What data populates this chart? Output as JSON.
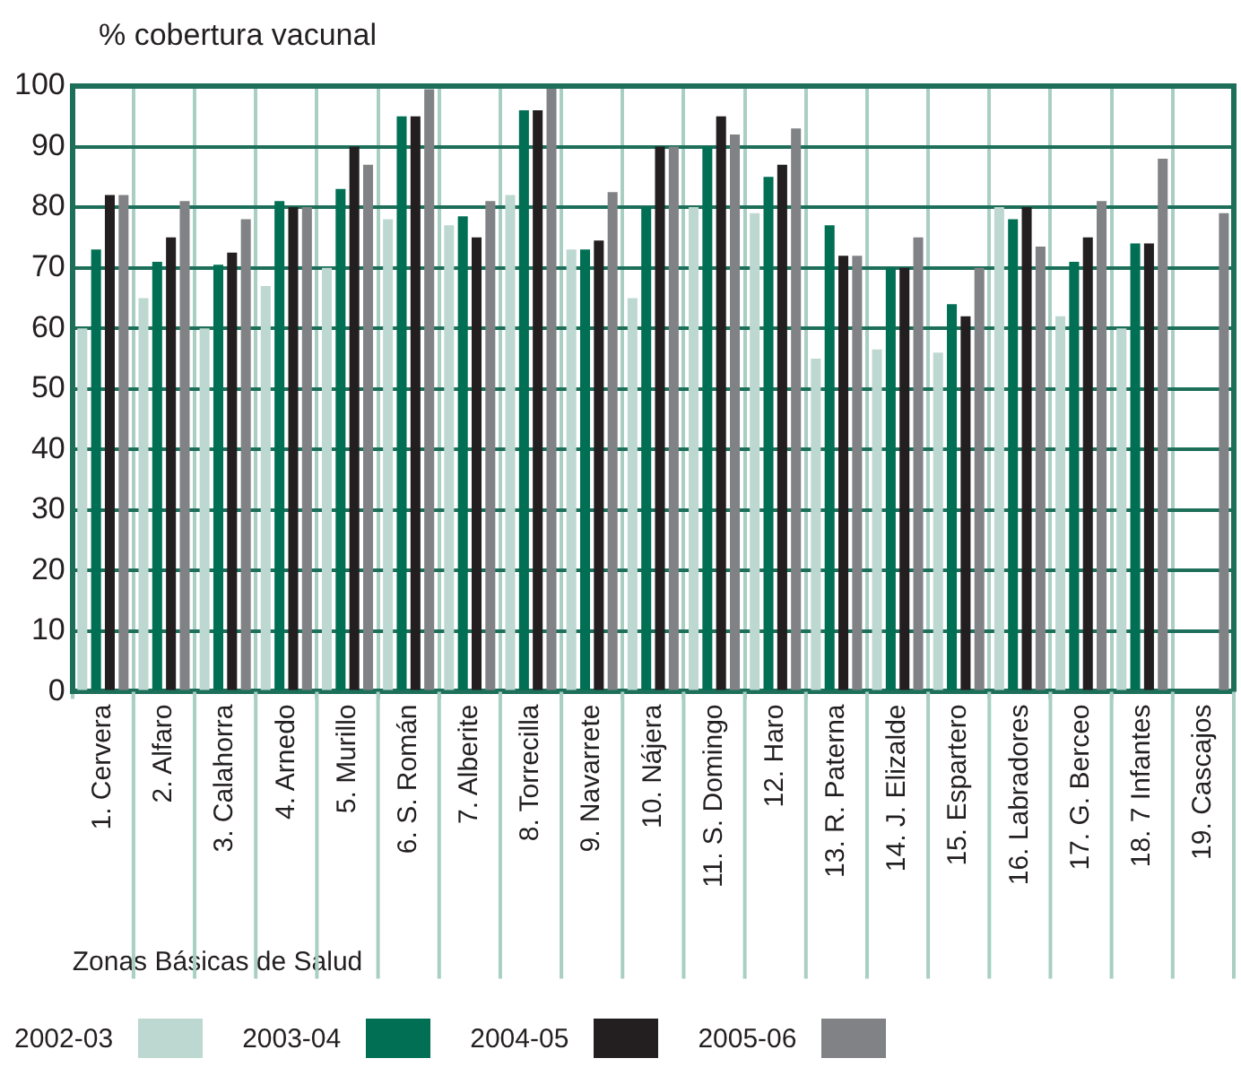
{
  "chart_data": {
    "type": "bar",
    "ylabel": "% cobertura vacunal",
    "xlabel": "Zonas Básicas de Salud",
    "categories": [
      "1. Cervera",
      "2. Alfaro",
      "3. Calahorra",
      "4. Arnedo",
      "5. Murillo",
      "6. S. Román",
      "7. Alberite",
      "8. Torrecilla",
      "9. Navarrete",
      "10. Nájera",
      "11. S. Domingo",
      "12. Haro",
      "13. R. Paterna",
      "14. J. Elizalde",
      "15. Espartero",
      "16. Labradores",
      "17. G. Berceo",
      "18. 7 Infantes",
      "19. Cascajos"
    ],
    "series": [
      {
        "name": "2002-03",
        "color": "#bdd8d0",
        "values": [
          60,
          65,
          60,
          67,
          70,
          78,
          77,
          82,
          73,
          65,
          80,
          79,
          55,
          56.5,
          56,
          80,
          62,
          60,
          null
        ]
      },
      {
        "name": "2003-04",
        "color": "#006f53",
        "values": [
          73,
          71,
          70.5,
          81,
          83,
          95,
          78.5,
          96,
          73,
          80,
          90,
          85,
          77,
          70,
          64,
          78,
          71,
          74,
          null
        ]
      },
      {
        "name": "2004-05",
        "color": "#231f20",
        "values": [
          82,
          75,
          72.5,
          80,
          90,
          95,
          75,
          96,
          74.5,
          90,
          95,
          87,
          72,
          70,
          62,
          80,
          75,
          74,
          null
        ]
      },
      {
        "name": "2005-06",
        "color": "#808285",
        "values": [
          82,
          81,
          78,
          80,
          87,
          99.5,
          81,
          100,
          82.5,
          90,
          92,
          93,
          72,
          75,
          70,
          73.5,
          81,
          88,
          79
        ]
      }
    ],
    "ylim": [
      0,
      100
    ],
    "yticks": [
      0,
      10,
      20,
      30,
      40,
      50,
      60,
      70,
      80,
      90,
      100
    ],
    "grid": true,
    "legend": "bottom"
  }
}
